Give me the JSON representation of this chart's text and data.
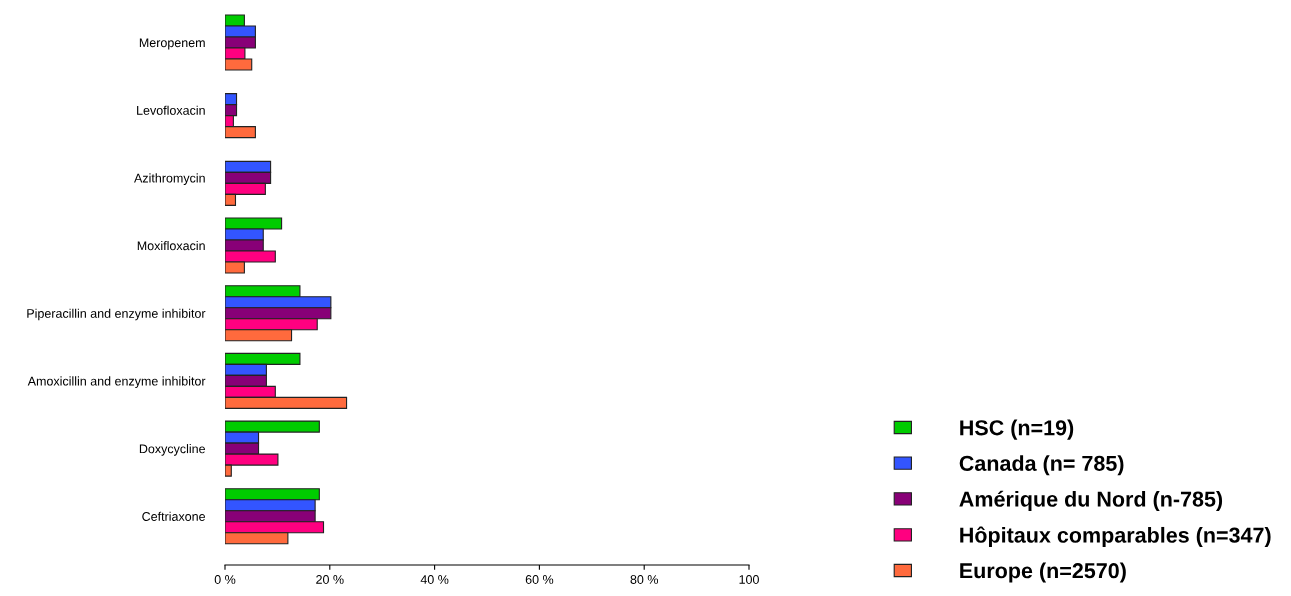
{
  "chart_data": {
    "type": "bar",
    "orientation": "horizontal",
    "categories": [
      "Meropenem",
      "Levofloxacin",
      "Azithromycin",
      "Moxifloxacin",
      "Piperacillin and enzyme inhibitor",
      "Amoxicillin and enzyme inhibitor",
      "Doxycycline",
      "Ceftriaxone"
    ],
    "series": [
      {
        "name": "HSC (n=19)",
        "color": "#00cc00",
        "values": [
          3.7,
          0,
          0,
          10.8,
          14.3,
          14.3,
          18.0,
          18.0
        ]
      },
      {
        "name": "Canada (n= 785)",
        "color": "#3355ff",
        "values": [
          5.8,
          2.2,
          8.7,
          7.3,
          20.2,
          7.9,
          6.4,
          17.2
        ]
      },
      {
        "name": "Amérique du Nord (n-785)",
        "color": "#880077",
        "values": [
          5.8,
          2.2,
          8.7,
          7.3,
          20.2,
          7.9,
          6.4,
          17.2
        ]
      },
      {
        "name": "Hôpitaux comparables (n=347)",
        "color": "#ff0080",
        "values": [
          3.8,
          1.6,
          7.7,
          9.6,
          17.6,
          9.6,
          10.1,
          18.8
        ]
      },
      {
        "name": "Europe (n=2570)",
        "color": "#ff6a3d",
        "values": [
          5.1,
          5.8,
          2.0,
          3.7,
          12.7,
          23.2,
          1.2,
          12.0
        ]
      }
    ],
    "xlim": [
      0,
      100
    ],
    "xticks": [
      {
        "value": 0,
        "label": "0 %"
      },
      {
        "value": 20,
        "label": "20 %"
      },
      {
        "value": 40,
        "label": "40 %"
      },
      {
        "value": 60,
        "label": "60 %"
      },
      {
        "value": 80,
        "label": "80 %"
      },
      {
        "value": 100,
        "label": "100"
      }
    ],
    "grid": false,
    "legend": "bottom right"
  }
}
